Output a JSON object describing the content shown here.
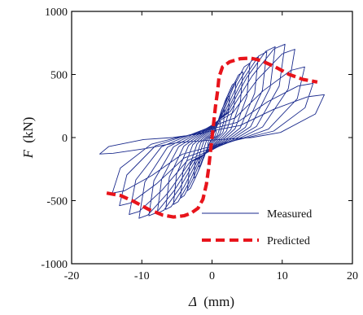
{
  "chart_data": {
    "type": "line",
    "title": "",
    "xlabel_symbol": "Δ",
    "xlabel_unit": "(mm)",
    "ylabel_symbol": "F",
    "ylabel_unit": "(kN)",
    "xlim": [
      -20,
      20
    ],
    "ylim": [
      -1000,
      1000
    ],
    "xticks": [
      -20,
      -10,
      0,
      10,
      20
    ],
    "yticks": [
      -1000,
      -500,
      0,
      500,
      1000
    ],
    "xtick_labels": [
      "-20",
      "-10",
      "0",
      "10",
      "20"
    ],
    "ytick_labels": [
      "-1000",
      "-500",
      "0",
      "500",
      "1000"
    ],
    "grid": false,
    "legend_position": "bottom-right",
    "series": [
      {
        "name": "Measured",
        "style": "thin solid",
        "color": "#1a2a8c",
        "cycles": [
          {
            "dmax": 0.6,
            "fmax": 60,
            "dmin": -0.6,
            "fmin": -70
          },
          {
            "dmax": 1.2,
            "fmax": 130,
            "dmin": -1.2,
            "fmin": -140
          },
          {
            "dmax": 1.8,
            "fmax": 220,
            "dmin": -1.9,
            "fmin": -230
          },
          {
            "dmax": 2.5,
            "fmax": 330,
            "dmin": -2.6,
            "fmin": -320
          },
          {
            "dmax": 3.4,
            "fmax": 440,
            "dmin": -3.5,
            "fmin": -420
          },
          {
            "dmax": 4.4,
            "fmax": 520,
            "dmin": -4.5,
            "fmin": -480
          },
          {
            "dmax": 5.4,
            "fmax": 590,
            "dmin": -5.5,
            "fmin": -530
          },
          {
            "dmax": 6.6,
            "fmax": 640,
            "dmin": -6.6,
            "fmin": -570
          },
          {
            "dmax": 7.8,
            "fmax": 680,
            "dmin": -7.8,
            "fmin": -600
          },
          {
            "dmax": 9.0,
            "fmax": 720,
            "dmin": -9.0,
            "fmin": -620
          },
          {
            "dmax": 10.4,
            "fmax": 740,
            "dmin": -10.4,
            "fmin": -640
          },
          {
            "dmax": 11.8,
            "fmax": 700,
            "dmin": -11.8,
            "fmin": -610
          },
          {
            "dmax": 13.2,
            "fmax": 560,
            "dmin": -13.2,
            "fmin": -540
          },
          {
            "dmax": 14.4,
            "fmax": 430,
            "dmin": -14.2,
            "fmin": -440
          },
          {
            "dmax": 16.0,
            "fmax": 340,
            "dmin": -16.0,
            "fmin": -130
          }
        ]
      },
      {
        "name": "Predicted",
        "style": "thick dashed",
        "color": "#e8141b",
        "points": [
          [
            -15,
            -440
          ],
          [
            -13,
            -460
          ],
          [
            -11,
            -510
          ],
          [
            -9,
            -570
          ],
          [
            -7,
            -615
          ],
          [
            -5.5,
            -630
          ],
          [
            -4,
            -620
          ],
          [
            -3,
            -600
          ],
          [
            -2,
            -560
          ],
          [
            -1.3,
            -490
          ],
          [
            -0.8,
            -370
          ],
          [
            -0.5,
            -250
          ],
          [
            -0.3,
            -150
          ],
          [
            0,
            0
          ],
          [
            0.3,
            150
          ],
          [
            0.5,
            250
          ],
          [
            0.8,
            370
          ],
          [
            1,
            480
          ],
          [
            1.5,
            560
          ],
          [
            2.5,
            600
          ],
          [
            4,
            625
          ],
          [
            5.5,
            630
          ],
          [
            7,
            610
          ],
          [
            9,
            560
          ],
          [
            11,
            500
          ],
          [
            13,
            460
          ],
          [
            15,
            440
          ]
        ]
      }
    ]
  }
}
